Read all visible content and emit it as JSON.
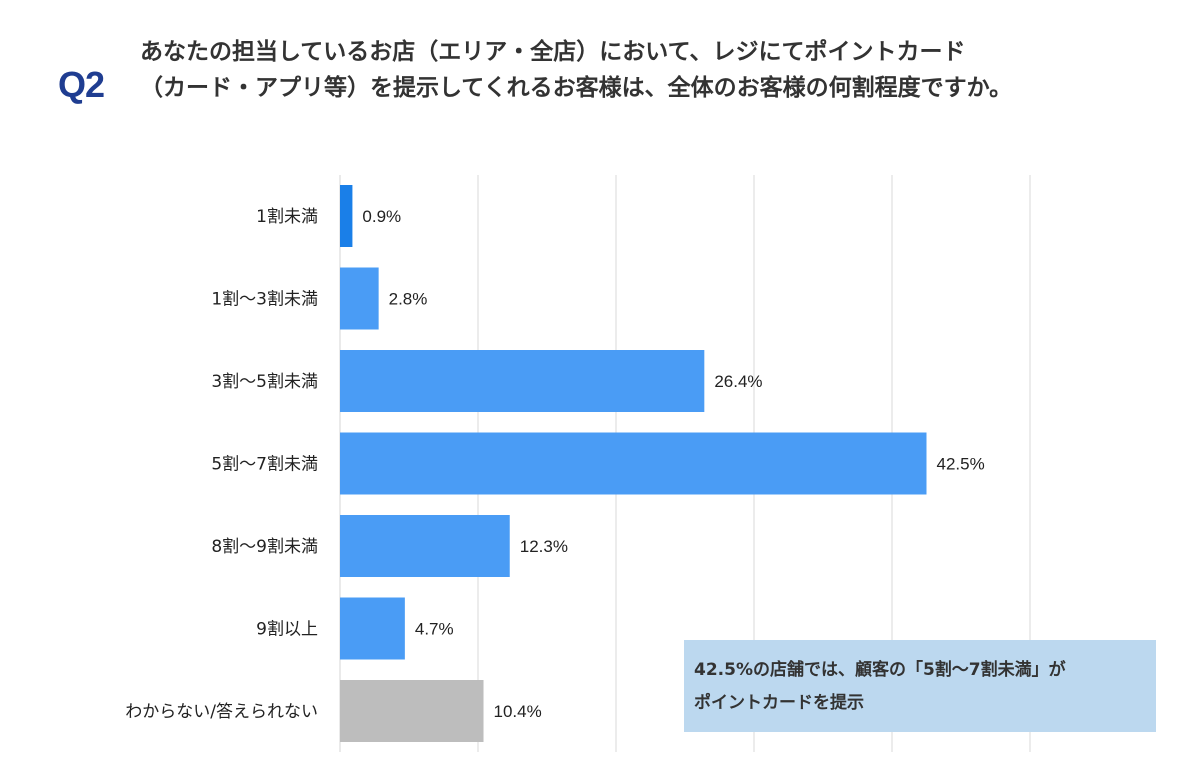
{
  "question": {
    "label": "Q2",
    "line1": "あなたの担当しているお店（エリア・全店）において、レジにてポイントカード",
    "line2": "（カード・アプリ等）を提示してくれるお客様は、全体のお客様の何割程度ですか。"
  },
  "chart_data": {
    "type": "bar",
    "orientation": "horizontal",
    "categories": [
      "1割未満",
      "1割〜3割未満",
      "3割〜5割未満",
      "5割〜7割未満",
      "8割〜9割未満",
      "9割以上",
      "わからない/答えられない"
    ],
    "values": [
      0.9,
      2.8,
      26.4,
      42.5,
      12.3,
      4.7,
      10.4
    ],
    "value_labels": [
      "0.9%",
      "2.8%",
      "26.4%",
      "42.5%",
      "12.3%",
      "4.7%",
      "10.4%"
    ],
    "bar_colors": [
      "#1a7fe8",
      "#4a9cf5",
      "#4a9cf5",
      "#4a9cf5",
      "#4a9cf5",
      "#4a9cf5",
      "#bdbdbd"
    ],
    "xlim": [
      0,
      50
    ],
    "grid": true,
    "unit": "%"
  },
  "callout": {
    "line1": "42.5%の店舗では、顧客の「5割〜7割未満」が",
    "line2": "ポイントカードを提示"
  }
}
